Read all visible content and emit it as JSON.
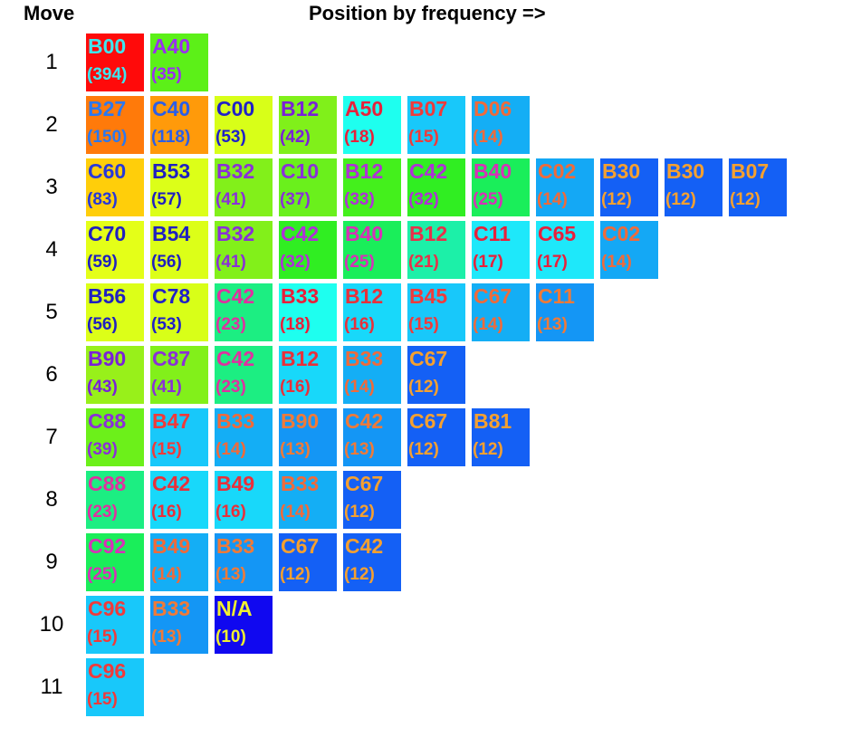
{
  "chart_data": {
    "type": "heatmap",
    "title": "Position by frequency =>",
    "row_header": "Move",
    "rows": [
      {
        "move": "1",
        "cells": [
          {
            "code": "B00",
            "count": "(394)",
            "bg": "#ff0a0a",
            "fg": "#3ee6f0"
          },
          {
            "code": "A40",
            "count": "(35)",
            "bg": "#5cf018",
            "fg": "#9a2ef0"
          }
        ]
      },
      {
        "move": "2",
        "cells": [
          {
            "code": "B27",
            "count": "(150)",
            "bg": "#ff7a0a",
            "fg": "#2a78f0"
          },
          {
            "code": "C40",
            "count": "(118)",
            "bg": "#ff9a0a",
            "fg": "#2a5ee8"
          },
          {
            "code": "C00",
            "count": "(53)",
            "bg": "#d8ff18",
            "fg": "#2020c8"
          },
          {
            "code": "B12",
            "count": "(42)",
            "bg": "#80f01a",
            "fg": "#7a20d8"
          },
          {
            "code": "A50",
            "count": "(18)",
            "bg": "#1effef",
            "fg": "#e8203a"
          },
          {
            "code": "B07",
            "count": "(15)",
            "bg": "#18c8fa",
            "fg": "#f03a3a"
          },
          {
            "code": "D06",
            "count": "(14)",
            "bg": "#14aef5",
            "fg": "#f06a3a"
          }
        ]
      },
      {
        "move": "3",
        "cells": [
          {
            "code": "C60",
            "count": "(83)",
            "bg": "#ffce0a",
            "fg": "#2838d8"
          },
          {
            "code": "B53",
            "count": "(57)",
            "bg": "#dcff18",
            "fg": "#2020c0"
          },
          {
            "code": "B32",
            "count": "(41)",
            "bg": "#82f01a",
            "fg": "#8a30d8"
          },
          {
            "code": "C10",
            "count": "(37)",
            "bg": "#6af01c",
            "fg": "#8a30d8"
          },
          {
            "code": "B12",
            "count": "(33)",
            "bg": "#44f01c",
            "fg": "#b030d8"
          },
          {
            "code": "C42",
            "count": "(32)",
            "bg": "#30ee22",
            "fg": "#b030d8"
          },
          {
            "code": "B40",
            "count": "(25)",
            "bg": "#1aee5a",
            "fg": "#d830b8"
          },
          {
            "code": "C02",
            "count": "(14)",
            "bg": "#14a8f5",
            "fg": "#f06a3a"
          },
          {
            "code": "B30",
            "count": "(12)",
            "bg": "#1460f5",
            "fg": "#f5a030"
          },
          {
            "code": "B30",
            "count": "(12)",
            "bg": "#1460f5",
            "fg": "#f5a030"
          },
          {
            "code": "B07",
            "count": "(12)",
            "bg": "#1460f5",
            "fg": "#f5a030"
          }
        ]
      },
      {
        "move": "4",
        "cells": [
          {
            "code": "C70",
            "count": "(59)",
            "bg": "#e4ff18",
            "fg": "#2020c0"
          },
          {
            "code": "B54",
            "count": "(56)",
            "bg": "#dcff18",
            "fg": "#2020c0"
          },
          {
            "code": "B32",
            "count": "(41)",
            "bg": "#82f01a",
            "fg": "#8a30d8"
          },
          {
            "code": "C42",
            "count": "(32)",
            "bg": "#30ee22",
            "fg": "#b030d8"
          },
          {
            "code": "B40",
            "count": "(25)",
            "bg": "#1aee5a",
            "fg": "#d830b8"
          },
          {
            "code": "B12",
            "count": "(21)",
            "bg": "#1cf0a8",
            "fg": "#e8304a"
          },
          {
            "code": "C11",
            "count": "(17)",
            "bg": "#1ee8fa",
            "fg": "#e8203a"
          },
          {
            "code": "C65",
            "count": "(17)",
            "bg": "#1ee8fa",
            "fg": "#e8203a"
          },
          {
            "code": "C02",
            "count": "(14)",
            "bg": "#14a8f5",
            "fg": "#f06a3a"
          }
        ]
      },
      {
        "move": "5",
        "cells": [
          {
            "code": "B56",
            "count": "(56)",
            "bg": "#dcff18",
            "fg": "#2020c0"
          },
          {
            "code": "C78",
            "count": "(53)",
            "bg": "#d8ff18",
            "fg": "#2020c8"
          },
          {
            "code": "C42",
            "count": "(23)",
            "bg": "#1cee82",
            "fg": "#e030a0"
          },
          {
            "code": "B33",
            "count": "(18)",
            "bg": "#1effef",
            "fg": "#e8203a"
          },
          {
            "code": "B12",
            "count": "(16)",
            "bg": "#18d8fa",
            "fg": "#e8303a"
          },
          {
            "code": "B45",
            "count": "(15)",
            "bg": "#18c8fa",
            "fg": "#f03a3a"
          },
          {
            "code": "C67",
            "count": "(14)",
            "bg": "#14aef5",
            "fg": "#f06a3a"
          },
          {
            "code": "C11",
            "count": "(13)",
            "bg": "#1496f5",
            "fg": "#f07a38"
          }
        ]
      },
      {
        "move": "6",
        "cells": [
          {
            "code": "B90",
            "count": "(43)",
            "bg": "#98f01a",
            "fg": "#7a20d8"
          },
          {
            "code": "C87",
            "count": "(41)",
            "bg": "#82f01a",
            "fg": "#8a30d8"
          },
          {
            "code": "C42",
            "count": "(23)",
            "bg": "#1cee82",
            "fg": "#e030a0"
          },
          {
            "code": "B12",
            "count": "(16)",
            "bg": "#18d8fa",
            "fg": "#e8303a"
          },
          {
            "code": "B33",
            "count": "(14)",
            "bg": "#14aef5",
            "fg": "#f06a3a"
          },
          {
            "code": "C67",
            "count": "(12)",
            "bg": "#1460f5",
            "fg": "#f5a030"
          }
        ]
      },
      {
        "move": "7",
        "cells": [
          {
            "code": "C88",
            "count": "(39)",
            "bg": "#6cf01a",
            "fg": "#8a30d8"
          },
          {
            "code": "B47",
            "count": "(15)",
            "bg": "#18c8fa",
            "fg": "#f03a3a"
          },
          {
            "code": "B33",
            "count": "(14)",
            "bg": "#14aef5",
            "fg": "#f06a3a"
          },
          {
            "code": "B90",
            "count": "(13)",
            "bg": "#1496f5",
            "fg": "#f07a38"
          },
          {
            "code": "C42",
            "count": "(13)",
            "bg": "#1496f5",
            "fg": "#f07a38"
          },
          {
            "code": "C67",
            "count": "(12)",
            "bg": "#1460f5",
            "fg": "#f5a030"
          },
          {
            "code": "B81",
            "count": "(12)",
            "bg": "#1460f5",
            "fg": "#f5a030"
          }
        ]
      },
      {
        "move": "8",
        "cells": [
          {
            "code": "C88",
            "count": "(23)",
            "bg": "#1cee82",
            "fg": "#e030a0"
          },
          {
            "code": "C42",
            "count": "(16)",
            "bg": "#18d8fa",
            "fg": "#e8303a"
          },
          {
            "code": "B49",
            "count": "(16)",
            "bg": "#18d8fa",
            "fg": "#e8303a"
          },
          {
            "code": "B33",
            "count": "(14)",
            "bg": "#14aef5",
            "fg": "#f06a3a"
          },
          {
            "code": "C67",
            "count": "(12)",
            "bg": "#1460f5",
            "fg": "#f5a030"
          }
        ]
      },
      {
        "move": "9",
        "cells": [
          {
            "code": "C92",
            "count": "(25)",
            "bg": "#1aee5a",
            "fg": "#d830b8"
          },
          {
            "code": "B49",
            "count": "(14)",
            "bg": "#14aef5",
            "fg": "#f06a3a"
          },
          {
            "code": "B33",
            "count": "(13)",
            "bg": "#1496f5",
            "fg": "#f07a38"
          },
          {
            "code": "C67",
            "count": "(12)",
            "bg": "#1460f5",
            "fg": "#f5a030"
          },
          {
            "code": "C42",
            "count": "(12)",
            "bg": "#1460f5",
            "fg": "#f5a030"
          }
        ]
      },
      {
        "move": "10",
        "cells": [
          {
            "code": "C96",
            "count": "(15)",
            "bg": "#18c8fa",
            "fg": "#f03a3a"
          },
          {
            "code": "B33",
            "count": "(13)",
            "bg": "#1496f5",
            "fg": "#f07a38"
          },
          {
            "code": "N/A",
            "count": "(10)",
            "bg": "#1008f0",
            "fg": "#f0f030"
          }
        ]
      },
      {
        "move": "11",
        "cells": [
          {
            "code": "C96",
            "count": "(15)",
            "bg": "#18c8fa",
            "fg": "#f03a3a"
          }
        ]
      }
    ]
  }
}
